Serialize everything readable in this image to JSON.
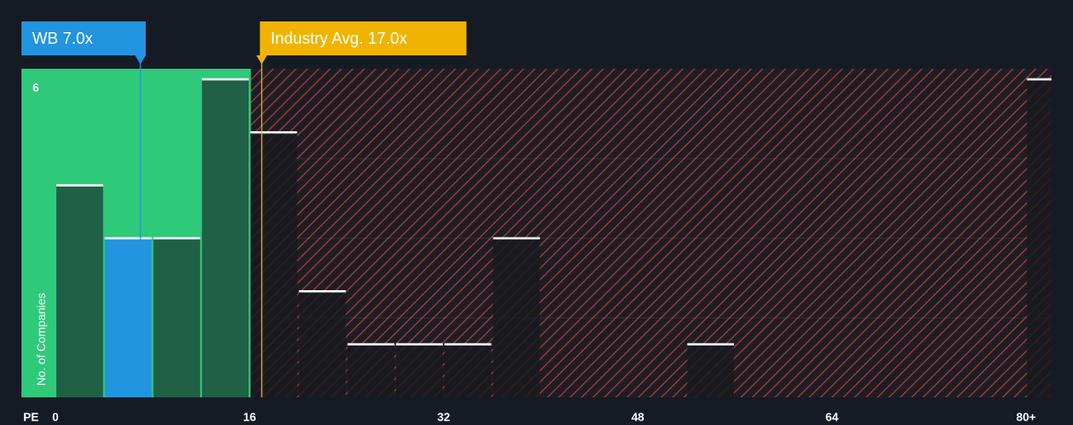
{
  "chart_data": {
    "type": "histogram",
    "x_label": "PE",
    "y_label": "No. of Companies",
    "bins": [
      0,
      4,
      8,
      12,
      16,
      20,
      24,
      28,
      32,
      36,
      40,
      44,
      48,
      52,
      56,
      60,
      64,
      68,
      72,
      76,
      80,
      84
    ],
    "counts": [
      4,
      3,
      3,
      6,
      5,
      2,
      1,
      1,
      1,
      3,
      0,
      0,
      0,
      1,
      0,
      0,
      0,
      0,
      0,
      0,
      6
    ],
    "xlim": [
      -2.8,
      82.1
    ],
    "ylim": [
      0,
      6.2
    ],
    "xticks": [
      0,
      16,
      32,
      48,
      64,
      {
        "value": 80,
        "label": "80+"
      }
    ],
    "yticks": [
      6
    ],
    "annotations": [
      {
        "label": "WB 7.0x",
        "x": 7,
        "color": "#2394df"
      },
      {
        "label": "Industry Avg. 17.0x",
        "x": 17,
        "color": "#f0b400"
      }
    ],
    "colors": {
      "fair": "#2fc97a",
      "over": "#c0392b"
    }
  }
}
